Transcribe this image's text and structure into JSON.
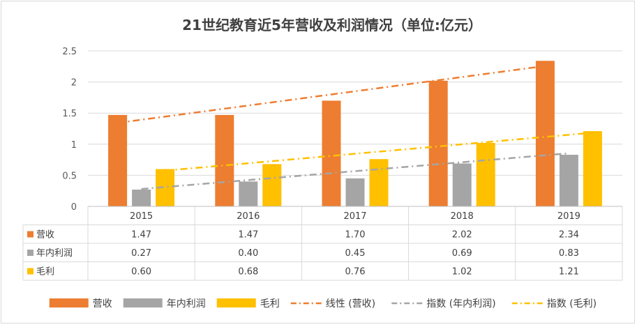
{
  "chart_data": {
    "type": "bar",
    "title": "21世纪教育近5年营收及利润情况（单位:亿元）",
    "categories": [
      "2015",
      "2016",
      "2017",
      "2018",
      "2019"
    ],
    "ylim": [
      0,
      2.5
    ],
    "yticks": [
      "0",
      "0.5",
      "1",
      "1.5",
      "2",
      "2.5"
    ],
    "grid": true,
    "legend_position": "bottom",
    "series": [
      {
        "name": "营收",
        "color": "#ED7D31",
        "values": [
          1.47,
          1.47,
          1.7,
          2.02,
          2.34
        ],
        "labels": [
          "1.47",
          "1.47",
          "1.70",
          "2.02",
          "2.34"
        ]
      },
      {
        "name": "年内利润",
        "color": "#A5A5A5",
        "values": [
          0.27,
          0.4,
          0.45,
          0.69,
          0.83
        ],
        "labels": [
          "0.27",
          "0.40",
          "0.45",
          "0.69",
          "0.83"
        ]
      },
      {
        "name": "毛利",
        "color": "#FFC000",
        "values": [
          0.6,
          0.68,
          0.76,
          1.02,
          1.21
        ],
        "labels": [
          "0.60",
          "0.68",
          "0.76",
          "1.02",
          "1.21"
        ]
      }
    ],
    "trendlines": [
      {
        "name": "线性 (营收)",
        "kind": "linear",
        "series": 0,
        "color": "#ED7D31",
        "dash": "dash-dot"
      },
      {
        "name": "指数 (年内利润)",
        "kind": "exponential",
        "series": 1,
        "color": "#A5A5A5",
        "dash": "dash-dot"
      },
      {
        "name": "指数 (毛利)",
        "kind": "exponential",
        "series": 2,
        "color": "#FFC000",
        "dash": "dash-dot"
      }
    ]
  }
}
